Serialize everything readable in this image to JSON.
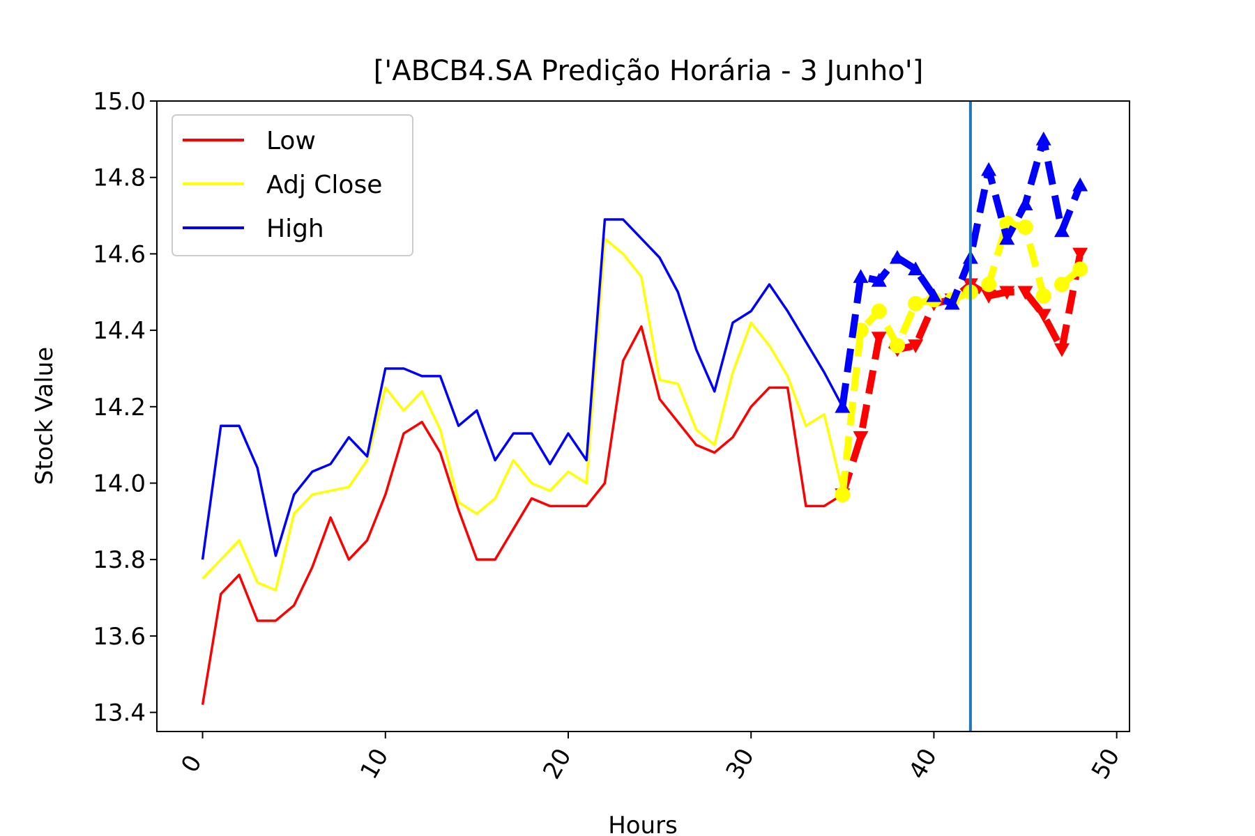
{
  "chart_data": {
    "type": "line",
    "title": "['ABCB4.SA Predição Horária - 3 Junho']",
    "xlabel": "Hours",
    "ylabel": "Stock Value",
    "xlim": [
      -2.5,
      50.7
    ],
    "ylim": [
      13.35,
      15.0
    ],
    "xticks": [
      0,
      10,
      20,
      30,
      40,
      50
    ],
    "xtick_labels": [
      "0",
      "10",
      "20",
      "30",
      "40",
      "50"
    ],
    "yticks": [
      13.4,
      13.6,
      13.8,
      14.0,
      14.2,
      14.4,
      14.6,
      14.8,
      15.0
    ],
    "ytick_labels": [
      "13.4",
      "13.6",
      "13.8",
      "14.0",
      "14.2",
      "14.4",
      "14.6",
      "14.8",
      "15.0"
    ],
    "grid": false,
    "legend_position": "upper-left",
    "vertical_line": {
      "x": 42,
      "color": "#1f77b4"
    },
    "series": [
      {
        "name": "Low",
        "color": "#ff0000",
        "x": [
          0,
          1,
          2,
          3,
          4,
          5,
          6,
          7,
          8,
          9,
          10,
          11,
          12,
          13,
          14,
          15,
          16,
          17,
          18,
          19,
          20,
          21,
          22,
          23,
          24,
          25,
          26,
          27,
          28,
          29,
          30,
          31,
          32,
          33,
          34,
          35
        ],
        "values": [
          13.42,
          13.71,
          13.76,
          13.64,
          13.64,
          13.68,
          13.78,
          13.91,
          13.8,
          13.85,
          13.97,
          14.13,
          14.16,
          14.08,
          13.93,
          13.8,
          13.8,
          13.88,
          13.96,
          13.94,
          13.94,
          13.94,
          14.0,
          14.32,
          14.41,
          14.22,
          14.16,
          14.1,
          14.08,
          14.12,
          14.2,
          14.25,
          14.25,
          13.94,
          13.94,
          13.97
        ]
      },
      {
        "name": "Adj Close",
        "color": "#ffff00",
        "x": [
          0,
          1,
          2,
          3,
          4,
          5,
          6,
          7,
          8,
          9,
          10,
          11,
          12,
          13,
          14,
          15,
          16,
          17,
          18,
          19,
          20,
          21,
          22,
          23,
          24,
          25,
          26,
          27,
          28,
          29,
          30,
          31,
          32,
          33,
          34,
          35
        ],
        "values": [
          13.75,
          13.8,
          13.85,
          13.74,
          13.72,
          13.92,
          13.97,
          13.98,
          13.99,
          14.06,
          14.25,
          14.19,
          14.24,
          14.14,
          13.95,
          13.92,
          13.96,
          14.06,
          14.0,
          13.98,
          14.03,
          14.0,
          14.64,
          14.6,
          14.54,
          14.27,
          14.26,
          14.14,
          14.1,
          14.29,
          14.42,
          14.36,
          14.28,
          14.15,
          14.18,
          13.98
        ]
      },
      {
        "name": "High",
        "color": "#0000ff",
        "x": [
          0,
          1,
          2,
          3,
          4,
          5,
          6,
          7,
          8,
          9,
          10,
          11,
          12,
          13,
          14,
          15,
          16,
          17,
          18,
          19,
          20,
          21,
          22,
          23,
          24,
          25,
          26,
          27,
          28,
          29,
          30,
          31,
          32,
          33,
          34,
          35
        ],
        "values": [
          13.8,
          14.15,
          14.15,
          14.04,
          13.81,
          13.97,
          14.03,
          14.05,
          14.12,
          14.07,
          14.3,
          14.3,
          14.28,
          14.28,
          14.15,
          14.19,
          14.06,
          14.13,
          14.13,
          14.05,
          14.13,
          14.06,
          14.69,
          14.69,
          14.64,
          14.59,
          14.5,
          14.35,
          14.24,
          14.42,
          14.45,
          14.52,
          14.45,
          14.37,
          14.29,
          14.2
        ]
      }
    ],
    "prediction_series": [
      {
        "color": "#ff0000",
        "marker": "triangle-down",
        "x": [
          35,
          36,
          37,
          38,
          39,
          40,
          41,
          42,
          43,
          44,
          45,
          46,
          47,
          48
        ],
        "values": [
          13.97,
          14.12,
          14.38,
          14.35,
          14.36,
          14.47,
          14.48,
          14.52,
          14.49,
          14.5,
          14.5,
          14.44,
          14.35,
          14.6
        ]
      },
      {
        "color": "#ffff00",
        "marker": "circle",
        "x": [
          35,
          36,
          37,
          38,
          39,
          40,
          41,
          42,
          43,
          44,
          45,
          46,
          47,
          48
        ],
        "values": [
          13.97,
          14.4,
          14.45,
          14.36,
          14.47,
          14.48,
          14.48,
          14.5,
          14.52,
          14.68,
          14.67,
          14.49,
          14.52,
          14.56
        ]
      },
      {
        "color": "#0000ff",
        "marker": "triangle-up",
        "x": [
          35,
          36,
          37,
          38,
          39,
          40,
          41,
          42,
          43,
          44,
          45,
          46,
          47,
          48
        ],
        "values": [
          14.2,
          14.54,
          14.53,
          14.59,
          14.56,
          14.49,
          14.47,
          14.59,
          14.82,
          14.64,
          14.73,
          14.9,
          14.66,
          14.78
        ]
      }
    ]
  }
}
